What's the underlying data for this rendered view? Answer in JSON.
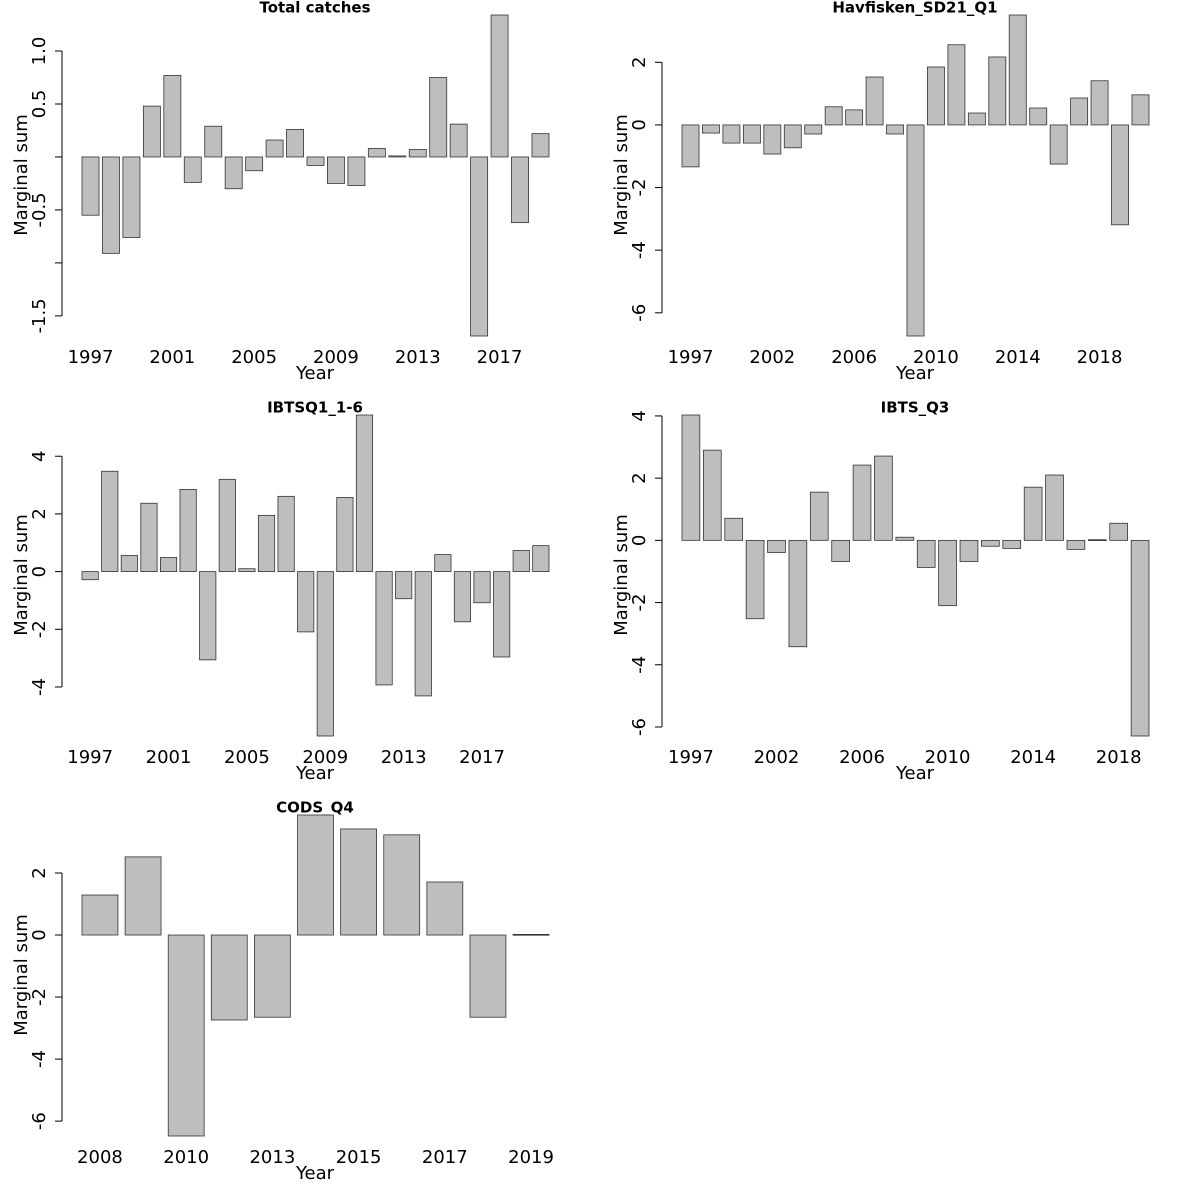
{
  "chart_data": [
    {
      "type": "bar",
      "title": "Total catches",
      "xlabel": "Year",
      "ylabel": "Marginal sum",
      "color": "#bebebe",
      "categories": [
        "1997",
        null,
        null,
        null,
        "2001",
        null,
        null,
        null,
        "2005",
        null,
        null,
        null,
        "2009",
        null,
        null,
        null,
        "2013",
        null,
        null,
        null,
        "2017",
        null,
        null
      ],
      "values": [
        -0.55,
        -0.91,
        -0.76,
        0.48,
        0.77,
        -0.24,
        0.29,
        -0.3,
        -0.13,
        0.16,
        0.26,
        -0.08,
        -0.25,
        -0.27,
        0.08,
        0.01,
        0.07,
        0.75,
        0.31,
        -1.69,
        1.34,
        -0.62,
        0.22
      ],
      "ylim": [
        -1.69,
        1.34
      ],
      "yticks": [
        -1.5,
        {
          "value": -1,
          "label": null
        },
        -0.5,
        {
          "value": 0,
          "label": null
        },
        0.5,
        {
          "value": 1,
          "label": "1.0"
        }
      ]
    },
    {
      "type": "bar",
      "title": "Havfisken_SD21_Q1",
      "xlabel": "Year",
      "ylabel": "Marginal sum",
      "color": "#bebebe",
      "categories": [
        "1997",
        null,
        null,
        null,
        "2002",
        null,
        null,
        null,
        "2006",
        null,
        null,
        null,
        "2010",
        null,
        null,
        null,
        "2014",
        null,
        null,
        null,
        "2018",
        null,
        null
      ],
      "values": [
        -1.34,
        -0.26,
        -0.58,
        -0.58,
        -0.93,
        -0.73,
        -0.29,
        0.58,
        0.48,
        1.53,
        -0.29,
        -6.74,
        1.85,
        2.56,
        0.38,
        2.17,
        3.51,
        0.54,
        -1.25,
        0.86,
        1.41,
        -3.19,
        0.96
      ],
      "ylim": [
        -6.74,
        3.51
      ],
      "yticks": [
        -6,
        -4,
        -2,
        0,
        2
      ]
    },
    {
      "type": "bar",
      "title": "IBTSQ1_1-6",
      "xlabel": "Year",
      "ylabel": "Marginal sum",
      "color": "#bebebe",
      "categories": [
        "1997",
        null,
        null,
        null,
        "2001",
        null,
        null,
        null,
        "2005",
        null,
        null,
        null,
        "2009",
        null,
        null,
        null,
        "2013",
        null,
        null,
        null,
        "2017",
        null,
        null,
        null
      ],
      "values": [
        -0.28,
        3.48,
        0.56,
        2.37,
        0.49,
        2.85,
        -3.06,
        3.2,
        0.1,
        1.95,
        2.61,
        -2.09,
        -5.7,
        2.57,
        5.43,
        -3.93,
        -0.94,
        -4.31,
        0.59,
        -1.74,
        -1.08,
        -2.96,
        0.73,
        0.9
      ],
      "ylim": [
        -5.7,
        5.43
      ],
      "yticks": [
        -4,
        -2,
        0,
        2,
        4
      ]
    },
    {
      "type": "bar",
      "title": "IBTS_Q3",
      "xlabel": "Year",
      "ylabel": "Marginal sum",
      "color": "#bebebe",
      "categories": [
        "1997",
        null,
        null,
        null,
        "2002",
        null,
        null,
        null,
        "2006",
        null,
        null,
        null,
        "2010",
        null,
        null,
        null,
        "2014",
        null,
        null,
        null,
        "2018",
        null
      ],
      "values": [
        4.03,
        2.9,
        0.71,
        -2.52,
        -0.39,
        -3.42,
        1.55,
        -0.68,
        2.42,
        2.71,
        0.1,
        -0.87,
        -2.1,
        -0.68,
        -0.19,
        -0.26,
        1.71,
        2.1,
        -0.29,
        0.02,
        0.55,
        -6.29
      ],
      "ylim": [
        -6.29,
        4.03
      ],
      "yticks": [
        -6,
        -4,
        -2,
        0,
        2,
        4
      ]
    },
    {
      "type": "bar",
      "title": "CODS_Q4",
      "xlabel": "Year",
      "ylabel": "Marginal sum",
      "color": "#bebebe",
      "categories": [
        "2008",
        null,
        "2010",
        null,
        "2013",
        null,
        "2015",
        null,
        "2017",
        null,
        "2019"
      ],
      "values": [
        1.29,
        2.52,
        -6.48,
        -2.74,
        -2.65,
        3.87,
        3.42,
        3.23,
        1.71,
        -2.65,
        0.02
      ],
      "ylim": [
        -6.48,
        3.87
      ],
      "yticks": [
        -6,
        -4,
        -2,
        0,
        2
      ]
    }
  ]
}
